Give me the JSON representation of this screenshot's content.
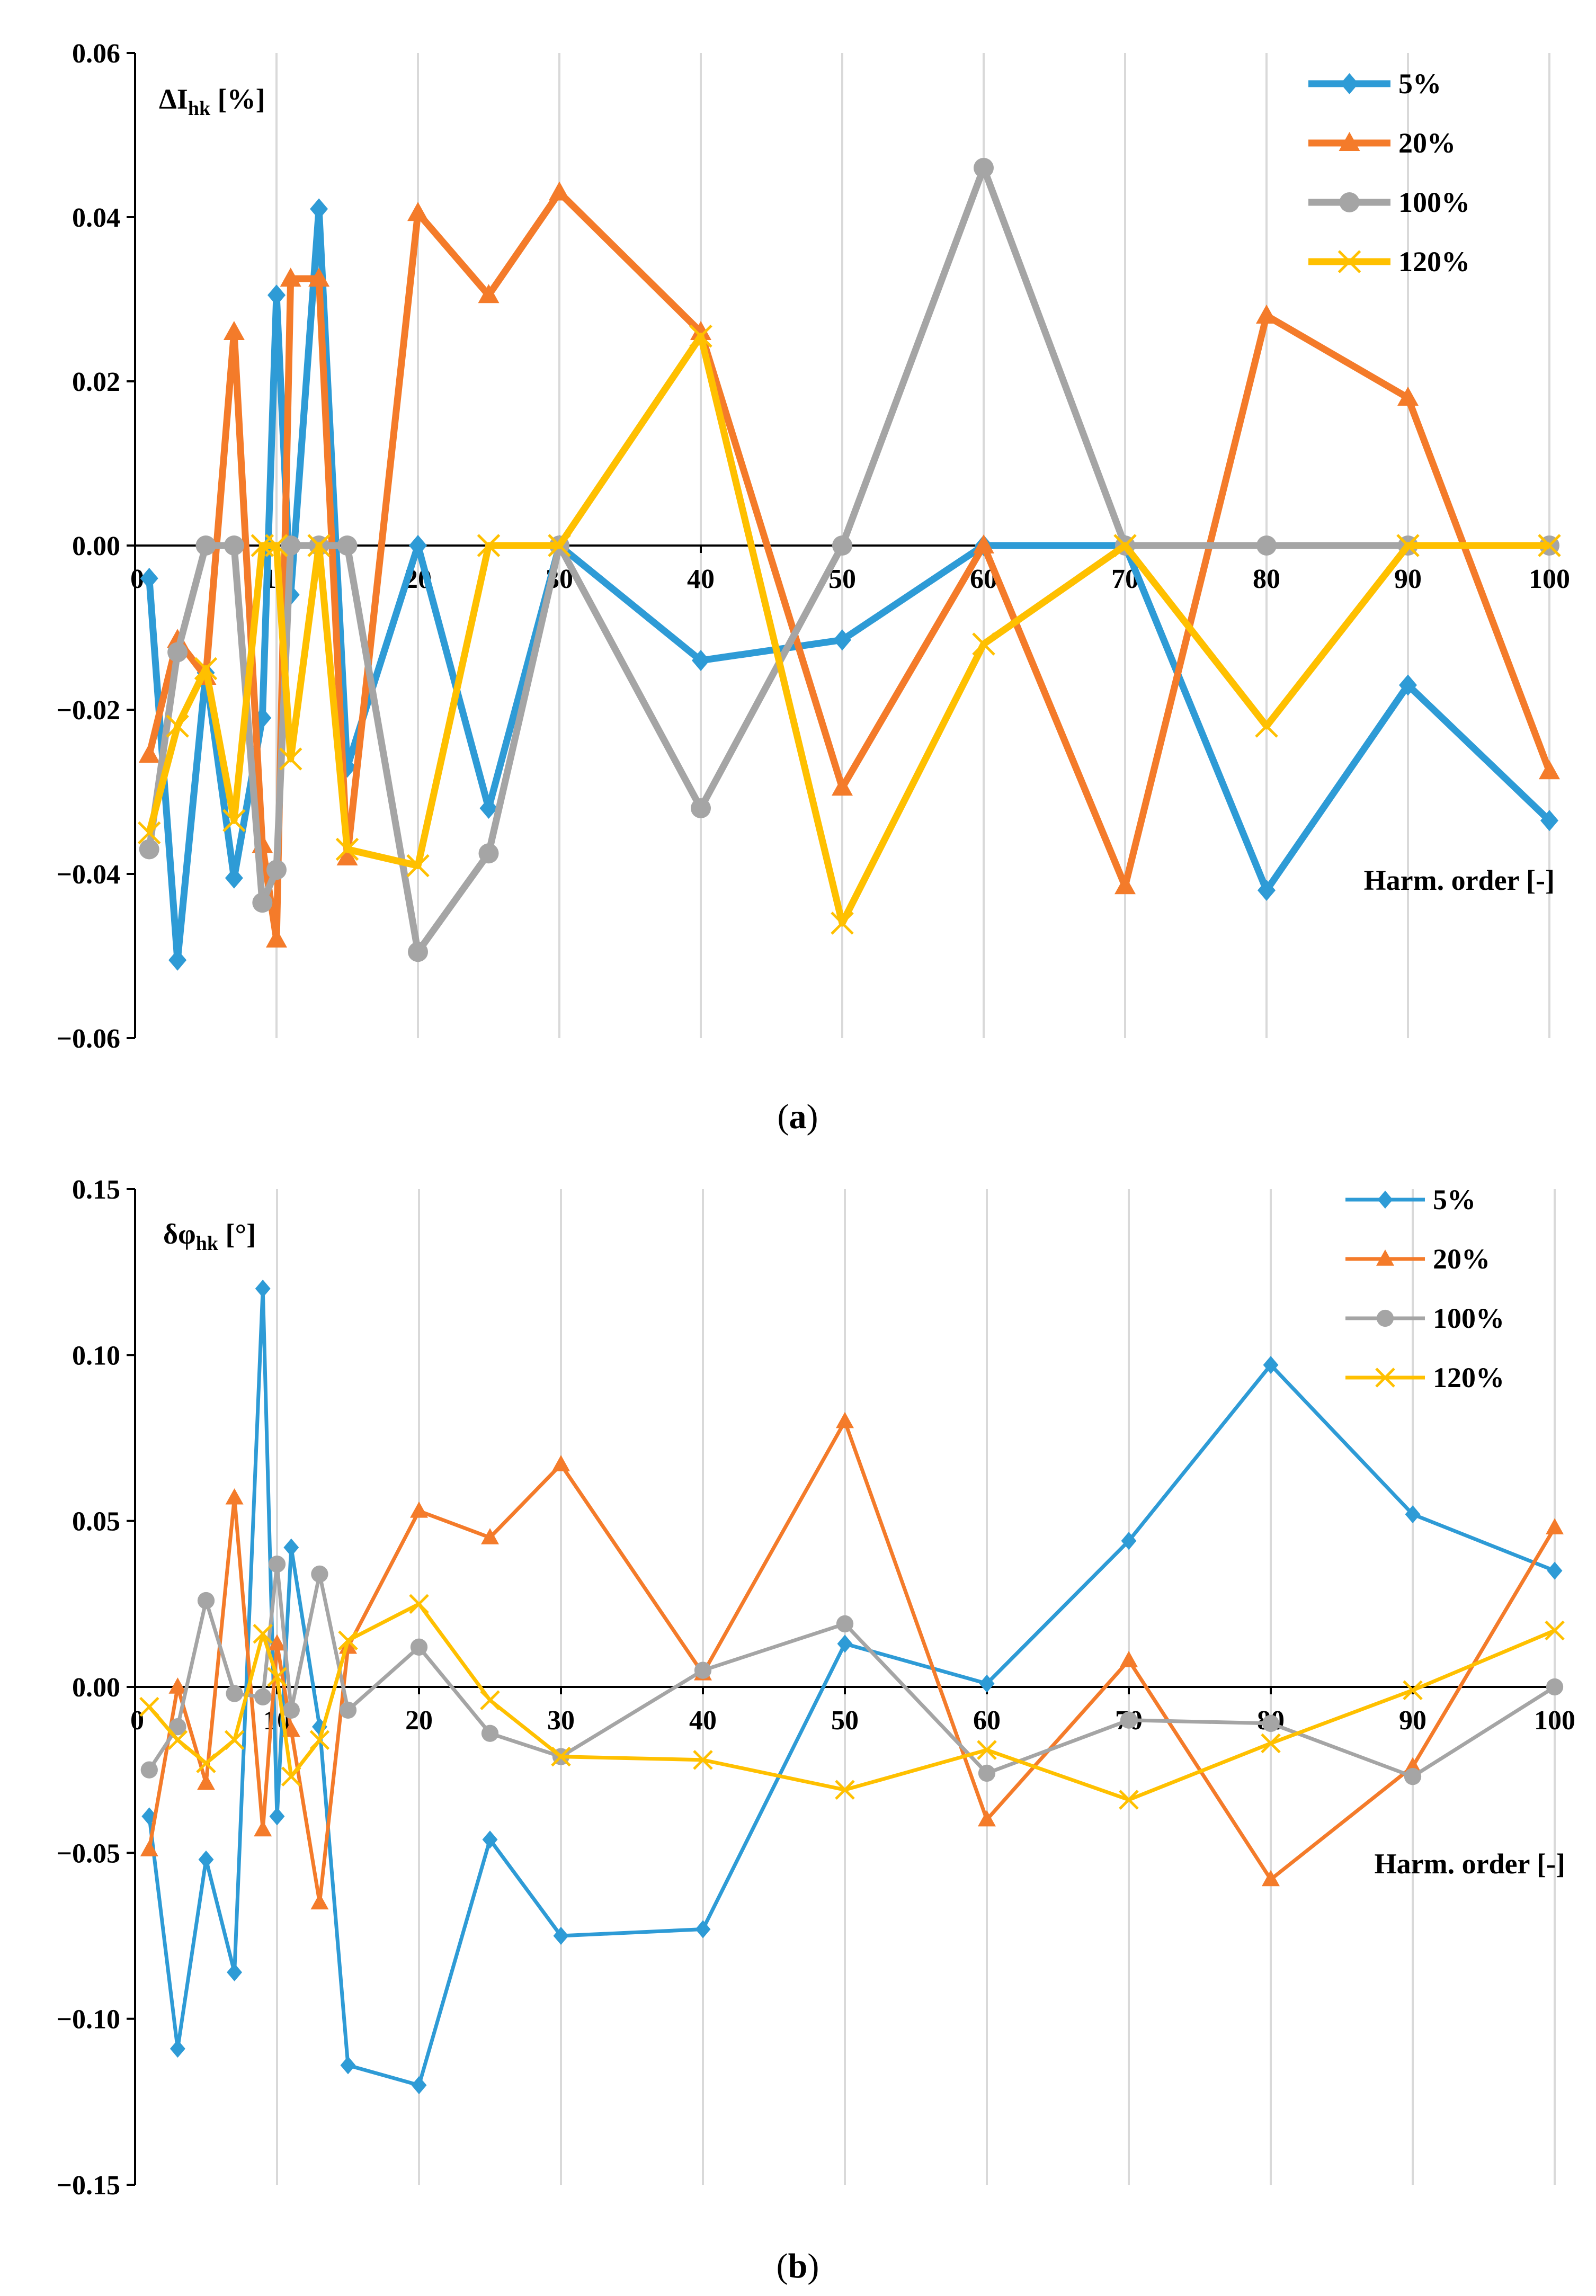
{
  "colors": {
    "s5": "#2E9BD6",
    "s20": "#F47B2A",
    "s100": "#A5A5A5",
    "s120": "#FFC000",
    "grid": "#D9D9D9",
    "axis": "#000000"
  },
  "chart_data": [
    {
      "type": "line",
      "caption": "a",
      "ylabel_main": "ΔI",
      "ylabel_sub": "hk",
      "ylabel_unit": " [%]",
      "xlabel": "Harm. order [-]",
      "xlim": [
        0,
        100
      ],
      "ylim": [
        -0.06,
        0.06
      ],
      "xticks": [
        "0",
        "10",
        "20",
        "30",
        "40",
        "50",
        "60",
        "70",
        "80",
        "90",
        "100"
      ],
      "yticks": [
        "0.06",
        "0.04",
        "0.02",
        "0.00",
        "−0.02",
        "−0.04",
        "−0.06"
      ],
      "ytick_values": [
        0.06,
        0.04,
        0.02,
        0.0,
        -0.02,
        -0.04,
        -0.06
      ],
      "x": [
        1,
        3,
        5,
        7,
        9,
        10,
        11,
        13,
        15,
        20,
        25,
        30,
        40,
        50,
        60,
        70,
        80,
        90,
        100
      ],
      "series": [
        {
          "name": "5%",
          "marker": "diamond",
          "values": [
            -0.004,
            -0.0505,
            -0.0155,
            -0.0405,
            -0.021,
            0.0305,
            -0.006,
            0.041,
            -0.027,
            0.0,
            -0.032,
            0.0,
            -0.014,
            -0.0115,
            0.0,
            0.0,
            -0.042,
            -0.017,
            -0.0335
          ]
        },
        {
          "name": "20%",
          "marker": "triangle",
          "values": [
            -0.0255,
            -0.0115,
            -0.016,
            0.026,
            -0.0365,
            -0.048,
            0.0325,
            0.0325,
            -0.038,
            0.0405,
            0.0305,
            0.043,
            0.026,
            -0.0295,
            0.0,
            -0.0415,
            0.028,
            0.018,
            -0.0275
          ]
        },
        {
          "name": "100%",
          "marker": "circle",
          "values": [
            -0.037,
            -0.013,
            0.0,
            0.0,
            -0.0435,
            -0.0395,
            0.0,
            0.0,
            0.0,
            -0.0495,
            -0.0375,
            0.0,
            -0.032,
            0.0,
            0.046,
            0.0,
            0.0,
            0.0,
            0.0
          ]
        },
        {
          "name": "120%",
          "marker": "x",
          "values": [
            -0.035,
            -0.022,
            -0.015,
            -0.0335,
            0.0,
            0.0,
            -0.026,
            0.0,
            -0.037,
            -0.039,
            0.0,
            0.0,
            0.0255,
            -0.046,
            -0.012,
            0.0,
            -0.022,
            0.0,
            0.0
          ]
        }
      ]
    },
    {
      "type": "line",
      "caption": "b",
      "ylabel_main": "δφ",
      "ylabel_sub": "hk",
      "ylabel_unit": " [°]",
      "xlabel": "Harm. order [-]",
      "xlim": [
        0,
        100
      ],
      "ylim": [
        -0.15,
        0.15
      ],
      "xticks": [
        "0",
        "10",
        "20",
        "30",
        "40",
        "50",
        "60",
        "70",
        "80",
        "90",
        "100"
      ],
      "yticks": [
        "0.15",
        "0.10",
        "0.05",
        "0.00",
        "−0.05",
        "−0.10",
        "−0.15"
      ],
      "ytick_values": [
        0.15,
        0.1,
        0.05,
        0.0,
        -0.05,
        -0.1,
        -0.15
      ],
      "x": [
        1,
        3,
        5,
        7,
        9,
        10,
        11,
        13,
        15,
        20,
        25,
        30,
        40,
        50,
        60,
        70,
        80,
        90,
        100
      ],
      "series": [
        {
          "name": "5%",
          "marker": "diamond",
          "values": [
            -0.039,
            -0.109,
            -0.052,
            -0.086,
            0.12,
            -0.039,
            0.042,
            -0.012,
            -0.114,
            -0.12,
            -0.046,
            -0.075,
            -0.073,
            0.013,
            0.001,
            0.044,
            0.097,
            0.052,
            0.035
          ]
        },
        {
          "name": "20%",
          "marker": "triangle",
          "values": [
            -0.049,
            0.0,
            -0.029,
            0.057,
            -0.043,
            0.013,
            -0.013,
            -0.065,
            0.012,
            0.053,
            0.045,
            0.067,
            0.004,
            0.08,
            -0.04,
            0.008,
            -0.058,
            -0.024,
            0.048
          ]
        },
        {
          "name": "100%",
          "marker": "circle",
          "values": [
            -0.025,
            -0.012,
            0.026,
            -0.002,
            -0.003,
            0.037,
            -0.007,
            0.034,
            -0.007,
            0.012,
            -0.014,
            -0.021,
            0.005,
            0.019,
            -0.026,
            -0.01,
            -0.011,
            -0.027,
            0.0
          ]
        },
        {
          "name": "120%",
          "marker": "x",
          "values": [
            -0.006,
            -0.016,
            -0.023,
            -0.016,
            0.016,
            0.003,
            -0.027,
            -0.016,
            0.014,
            0.025,
            -0.004,
            -0.021,
            -0.022,
            -0.031,
            -0.019,
            -0.034,
            -0.017,
            -0.001,
            0.017
          ]
        }
      ]
    }
  ]
}
